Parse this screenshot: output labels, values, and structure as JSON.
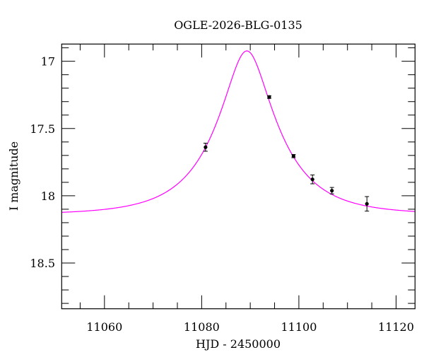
{
  "chart_data": {
    "type": "scatter",
    "title": "OGLE-2026-BLG-0135",
    "xlabel": "HJD - 2450000",
    "ylabel": "I magnitude",
    "xlim": [
      11051.2,
      11123.9
    ],
    "ylim": [
      18.84,
      16.872
    ],
    "y_inverted": true,
    "grid": false,
    "x_ticks": [
      11060,
      11080,
      11100,
      11120
    ],
    "x_tick_labels": [
      "11060",
      "11080",
      "11100",
      "11120"
    ],
    "x_minor_step": 5,
    "y_ticks": [
      17,
      17.5,
      18,
      18.5
    ],
    "y_tick_labels": [
      "17",
      "17.5",
      "18",
      "18.5"
    ],
    "y_minor_step": 0.1,
    "points": [
      {
        "x": 11080.8,
        "y": 17.639,
        "err": 0.03
      },
      {
        "x": 11093.9,
        "y": 17.266,
        "err": 0.01
      },
      {
        "x": 11098.9,
        "y": 17.705,
        "err": 0.012
      },
      {
        "x": 11102.8,
        "y": 17.878,
        "err": 0.033
      },
      {
        "x": 11106.8,
        "y": 17.962,
        "err": 0.024
      },
      {
        "x": 11114.0,
        "y": 18.06,
        "err": 0.054
      }
    ],
    "model_curve": {
      "type": "point-lens",
      "t0": 11089.3,
      "u0": 0.34,
      "tE": 12.5,
      "baseline_mag": 18.14
    },
    "colors": {
      "points": "#000000",
      "curve": "#ff00ff"
    }
  }
}
